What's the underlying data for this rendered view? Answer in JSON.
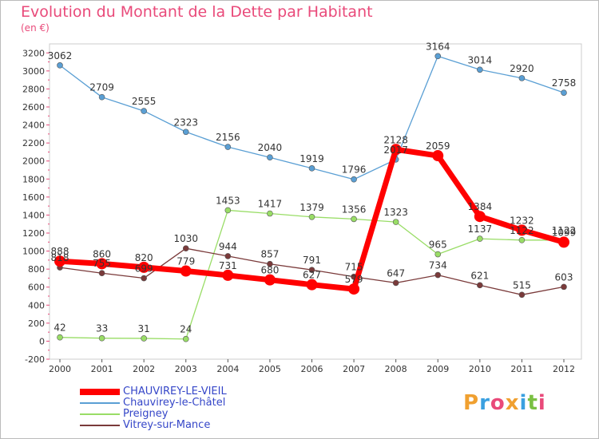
{
  "title": "Evolution du Montant de la Dette par Habitant",
  "subtitle": "(en €)",
  "logo": {
    "text": "Proxiti",
    "colors": [
      "#f0a030",
      "#3aa0e0",
      "#e94a7a",
      "#f0a030",
      "#3aa0e0",
      "#7ac043",
      "#e94a7a"
    ]
  },
  "chart_data": {
    "type": "line",
    "title": "Evolution du Montant de la Dette par Habitant",
    "subtitle": "(en €)",
    "x": [
      "2000",
      "2001",
      "2002",
      "2003",
      "2004",
      "2005",
      "2006",
      "2007",
      "2008",
      "2009",
      "2010",
      "2011",
      "2012"
    ],
    "yticks": [
      -200,
      0,
      200,
      400,
      600,
      800,
      1000,
      1200,
      1400,
      1600,
      1800,
      2000,
      2200,
      2400,
      2600,
      2800,
      3000,
      3200
    ],
    "ylim": [
      -200,
      3300
    ],
    "grid": false,
    "legend_position": "bottom-left",
    "series": [
      {
        "name": "CHAUVIREY-LE-VIEIL",
        "color": "#ff0000",
        "values": [
          888,
          860,
          820,
          779,
          731,
          680,
          627,
          579,
          2128,
          2059,
          1384,
          1232,
          1099
        ],
        "labels": [
          "888",
          "860",
          "820",
          "779",
          "731",
          "680",
          "627",
          "579",
          "2128",
          "2059",
          "1384",
          "1232",
          "1099"
        ]
      },
      {
        "name": "Chauvirey-le-Châtel",
        "color": "#5a9fd4",
        "values": [
          3062,
          2709,
          2555,
          2323,
          2156,
          2040,
          1919,
          1796,
          2017,
          3164,
          3014,
          2920,
          2758
        ],
        "labels": [
          "3062",
          "2709",
          "2555",
          "2323",
          "2156",
          "2040",
          "1919",
          "1796",
          "2017",
          "3164",
          "3014",
          "2920",
          "2758"
        ]
      },
      {
        "name": "Preigney",
        "color": "#99dd66",
        "values": [
          42,
          33,
          31,
          24,
          1453,
          1417,
          1379,
          1356,
          1323,
          965,
          1137,
          1122,
          1122
        ],
        "labels": [
          "42",
          "33",
          "31",
          "24",
          "1453",
          "1417",
          "1379",
          "1356",
          "1323",
          "965",
          "1137",
          "1122",
          "1122"
        ]
      },
      {
        "name": "Vitrey-sur-Mance",
        "color": "#7a3a3a",
        "values": [
          818,
          755,
          699,
          1030,
          944,
          857,
          791,
          715,
          647,
          734,
          621,
          515,
          603
        ],
        "labels": [
          "818",
          "755",
          "699",
          "1030",
          "944",
          "857",
          "791",
          "715",
          "647",
          "734",
          "621",
          "515",
          "603"
        ]
      }
    ]
  }
}
